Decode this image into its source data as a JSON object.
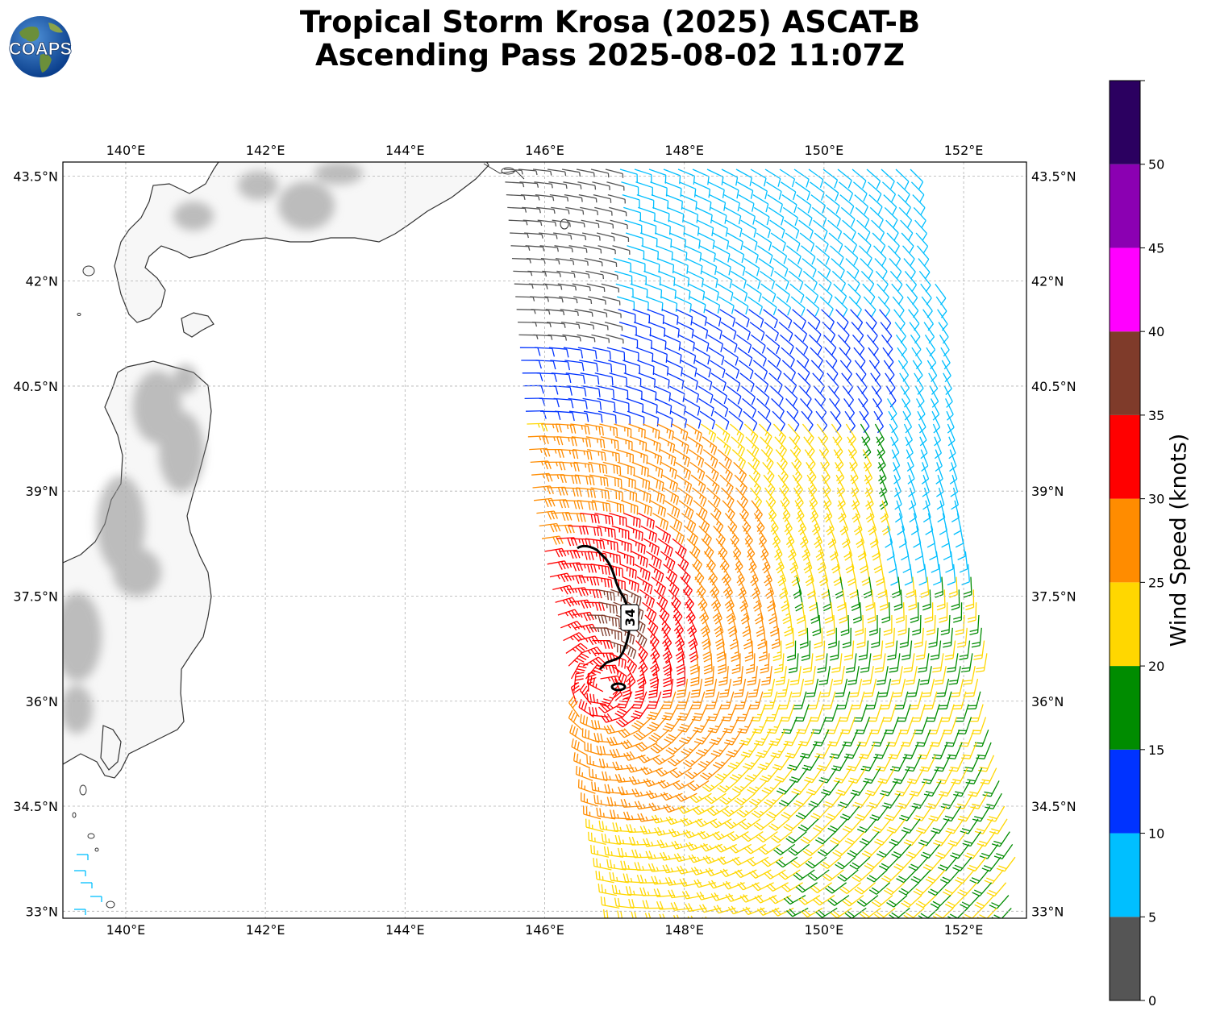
{
  "title": {
    "line1": "Tropical Storm Krosa (2025) ASCAT-B",
    "line2": "Ascending Pass 2025-08-02 11:07Z"
  },
  "logo": {
    "text": "COAPS"
  },
  "map": {
    "projection": "PlateCarree",
    "lon_range": [
      139.1,
      152.9
    ],
    "lat_range": [
      32.9,
      43.7
    ],
    "lon_ticks": [
      140,
      142,
      144,
      146,
      148,
      150,
      152
    ],
    "lon_tick_labels": [
      "140°E",
      "142°E",
      "144°E",
      "146°E",
      "148°E",
      "150°E",
      "152°E"
    ],
    "lat_ticks": [
      33,
      34.5,
      36,
      37.5,
      39,
      40.5,
      42,
      43.5
    ],
    "lat_tick_labels": [
      "33°N",
      "34.5°N",
      "36°N",
      "37.5°N",
      "39°N",
      "40.5°N",
      "42°N",
      "43.5°N"
    ],
    "gridlines": true,
    "terrain_shading": "grayscale",
    "coastline_color": "#333333"
  },
  "contour": {
    "label": "34",
    "units": "knots"
  },
  "colorbar": {
    "label": "Wind Speed (knots)",
    "bounds": [
      0,
      5,
      10,
      15,
      20,
      25,
      30,
      35,
      40,
      45,
      50,
      55
    ],
    "tick_labels": [
      "0",
      "5",
      "10",
      "15",
      "20",
      "25",
      "30",
      "35",
      "40",
      "45",
      "50"
    ],
    "colors": [
      "#555555",
      "#00bfff",
      "#0033ff",
      "#008c00",
      "#ffd700",
      "#ff8c00",
      "#ff0000",
      "#7f3b2a",
      "#ff00ff",
      "#8b00b2",
      "#2b0060"
    ]
  }
}
